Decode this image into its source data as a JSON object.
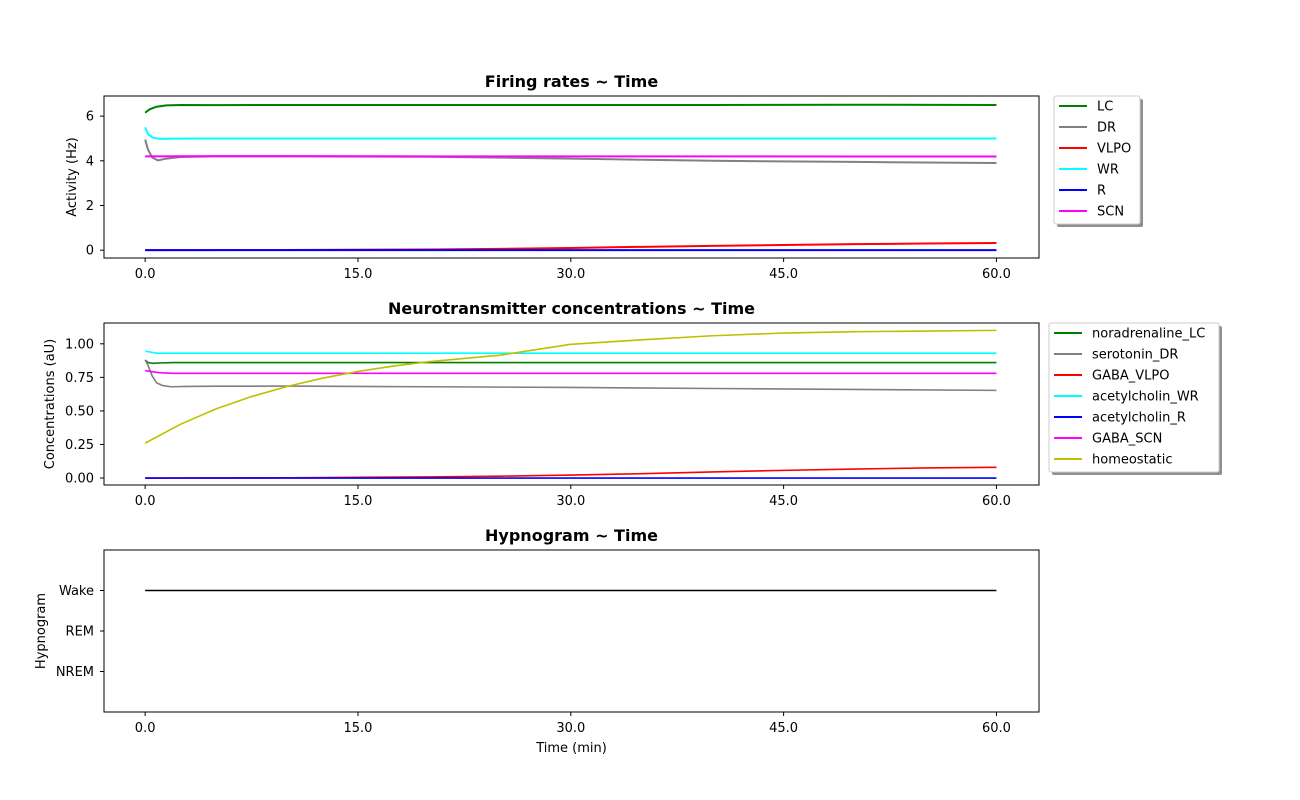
{
  "chart_data": [
    {
      "type": "line",
      "title": "Firing rates ~ Time",
      "xlabel": "",
      "ylabel": "Activity (Hz)",
      "xlim": [
        -2.9,
        63.0
      ],
      "ylim": [
        -0.35,
        6.9
      ],
      "xticks": [
        0,
        15,
        30,
        45,
        60
      ],
      "xticklabels": [
        "0.0",
        "15.0",
        "30.0",
        "45.0",
        "60.0"
      ],
      "yticks": [
        0,
        2,
        4,
        6
      ],
      "yticklabels": [
        "0",
        "2",
        "4",
        "6"
      ],
      "grid": false,
      "legend_position": "outside-right-top",
      "series": [
        {
          "name": "LC",
          "color": "#008000",
          "x": [
            0,
            0.3,
            0.8,
            1.5,
            2.5,
            5,
            10,
            20,
            30,
            40,
            50,
            60
          ],
          "y": [
            6.15,
            6.3,
            6.42,
            6.48,
            6.5,
            6.49,
            6.5,
            6.5,
            6.5,
            6.5,
            6.51,
            6.5
          ]
        },
        {
          "name": "DR",
          "color": "#808080",
          "x": [
            0,
            0.2,
            0.5,
            0.9,
            1.5,
            2.5,
            5,
            10,
            20,
            30,
            40,
            50,
            60
          ],
          "y": [
            4.95,
            4.5,
            4.15,
            4.02,
            4.1,
            4.17,
            4.2,
            4.2,
            4.18,
            4.1,
            4.0,
            3.95,
            3.9
          ]
        },
        {
          "name": "VLPO",
          "color": "#ff0000",
          "x": [
            0,
            10,
            20,
            25,
            30,
            35,
            40,
            45,
            50,
            55,
            60
          ],
          "y": [
            0.0,
            0.01,
            0.03,
            0.06,
            0.1,
            0.15,
            0.19,
            0.23,
            0.27,
            0.3,
            0.32
          ]
        },
        {
          "name": "WR",
          "color": "#00ffff",
          "x": [
            0,
            0.2,
            0.5,
            0.8,
            1.2,
            2,
            5,
            10,
            20,
            30,
            40,
            50,
            60
          ],
          "y": [
            5.5,
            5.2,
            5.05,
            5.0,
            4.98,
            4.99,
            5.0,
            5.0,
            5.0,
            5.0,
            5.0,
            5.0,
            5.0
          ]
        },
        {
          "name": "R",
          "color": "#0000ff",
          "x": [
            0,
            15,
            30,
            45,
            60
          ],
          "y": [
            0.0,
            0.0,
            0.0,
            0.0,
            0.0
          ]
        },
        {
          "name": "SCN",
          "color": "#ff00ff",
          "x": [
            0,
            5,
            10,
            20,
            30,
            40,
            50,
            60
          ],
          "y": [
            4.2,
            4.21,
            4.21,
            4.2,
            4.2,
            4.2,
            4.19,
            4.19
          ]
        }
      ]
    },
    {
      "type": "line",
      "title": "Neurotransmitter concentrations ~ Time",
      "xlabel": "",
      "ylabel": "Concentrations (aU)",
      "xlim": [
        -2.9,
        63.0
      ],
      "ylim": [
        -0.052,
        1.155
      ],
      "xticks": [
        0,
        15,
        30,
        45,
        60
      ],
      "xticklabels": [
        "0.0",
        "15.0",
        "30.0",
        "45.0",
        "60.0"
      ],
      "yticks": [
        0,
        0.25,
        0.5,
        0.75,
        1.0
      ],
      "yticklabels": [
        "0.00",
        "0.25",
        "0.50",
        "0.75",
        "1.00"
      ],
      "grid": false,
      "legend_position": "outside-right-top",
      "series": [
        {
          "name": "noradrenaline_LC",
          "color": "#008000",
          "x": [
            0,
            0.2,
            0.5,
            1,
            2,
            5,
            10,
            20,
            30,
            40,
            50,
            60
          ],
          "y": [
            0.88,
            0.86,
            0.855,
            0.857,
            0.86,
            0.86,
            0.86,
            0.86,
            0.86,
            0.86,
            0.86,
            0.86
          ]
        },
        {
          "name": "serotonin_DR",
          "color": "#808080",
          "x": [
            0,
            0.2,
            0.5,
            0.8,
            1.2,
            1.8,
            3,
            5,
            10,
            20,
            30,
            40,
            50,
            60
          ],
          "y": [
            0.88,
            0.84,
            0.76,
            0.71,
            0.69,
            0.68,
            0.682,
            0.684,
            0.685,
            0.68,
            0.675,
            0.667,
            0.66,
            0.653
          ]
        },
        {
          "name": "GABA_VLPO",
          "color": "#ff0000",
          "x": [
            0,
            10,
            20,
            25,
            30,
            35,
            40,
            45,
            50,
            55,
            60
          ],
          "y": [
            0.0,
            0.002,
            0.008,
            0.014,
            0.022,
            0.032,
            0.045,
            0.057,
            0.067,
            0.075,
            0.08
          ]
        },
        {
          "name": "acetylcholin_WR",
          "color": "#00ffff",
          "x": [
            0,
            0.3,
            0.8,
            1.5,
            3,
            10,
            20,
            30,
            40,
            50,
            60
          ],
          "y": [
            0.945,
            0.94,
            0.93,
            0.93,
            0.93,
            0.93,
            0.93,
            0.93,
            0.93,
            0.93,
            0.93
          ]
        },
        {
          "name": "acetylcholin_R",
          "color": "#0000ff",
          "x": [
            0,
            15,
            30,
            45,
            60
          ],
          "y": [
            0.0,
            0.0,
            0.0,
            0.0,
            0.0
          ]
        },
        {
          "name": "GABA_SCN",
          "color": "#ff00ff",
          "x": [
            0,
            1,
            2,
            10,
            20,
            30,
            40,
            50,
            60
          ],
          "y": [
            0.8,
            0.785,
            0.78,
            0.78,
            0.78,
            0.78,
            0.78,
            0.78,
            0.78
          ]
        },
        {
          "name": "homeostatic",
          "color": "#bfbf00",
          "x": [
            0,
            2.5,
            5,
            7.5,
            10,
            12.5,
            15,
            17.5,
            20,
            25,
            30,
            35,
            40,
            45,
            50,
            55,
            60
          ],
          "y": [
            0.26,
            0.401,
            0.515,
            0.607,
            0.682,
            0.744,
            0.794,
            0.834,
            0.867,
            0.915,
            0.996,
            1.03,
            1.06,
            1.08,
            1.09,
            1.095,
            1.1
          ]
        }
      ]
    },
    {
      "type": "line",
      "title": "Hypnogram ~ Time",
      "xlabel": "Time (min)",
      "ylabel": "Hypnogram",
      "xlim": [
        -2.9,
        63.0
      ],
      "ylim": [
        0.0,
        4.0
      ],
      "xticks": [
        0,
        15,
        30,
        45,
        60
      ],
      "xticklabels": [
        "0.0",
        "15.0",
        "30.0",
        "45.0",
        "60.0"
      ],
      "yticks": [
        1,
        2,
        3
      ],
      "yticklabels": [
        "NREM",
        "REM",
        "Wake"
      ],
      "grid": false,
      "series": [
        {
          "color": "#000000",
          "x": [
            0,
            60
          ],
          "y": [
            3,
            3
          ]
        }
      ]
    }
  ]
}
